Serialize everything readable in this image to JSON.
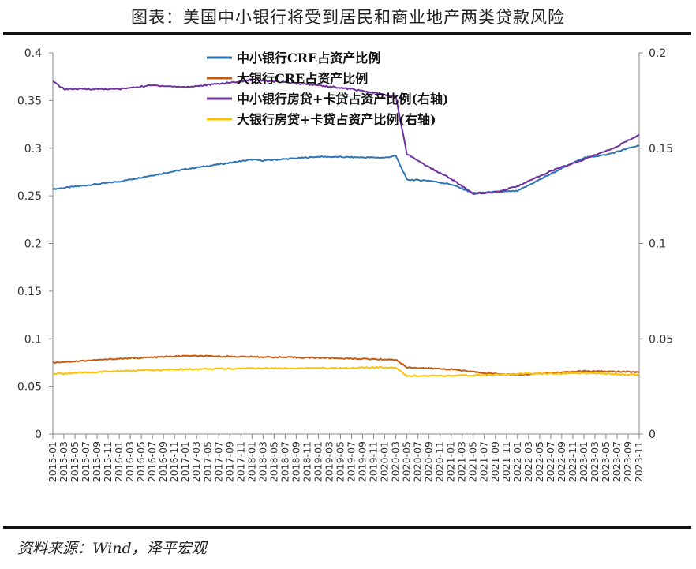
{
  "title": "图表：美国中小银行将受到居民和商业地产两类贷款风险",
  "source": "资料来源：Wind，泽平宏观",
  "chart_data": {
    "type": "line",
    "title": "图表：美国中小银行将受到居民和商业地产两类贷款风险",
    "x_ticks": [
      "2015-01",
      "2015-03",
      "2015-05",
      "2015-07",
      "2015-09",
      "2015-11",
      "2016-01",
      "2016-03",
      "2016-05",
      "2016-07",
      "2016-09",
      "2016-11",
      "2017-01",
      "2017-03",
      "2017-05",
      "2017-07",
      "2017-09",
      "2017-11",
      "2018-01",
      "2018-03",
      "2018-05",
      "2018-07",
      "2018-09",
      "2018-11",
      "2019-01",
      "2019-03",
      "2019-05",
      "2019-07",
      "2019-09",
      "2019-11",
      "2020-01",
      "2020-03",
      "2020-05",
      "2020-07",
      "2020-09",
      "2020-11",
      "2021-01",
      "2021-03",
      "2021-05",
      "2021-07",
      "2021-09",
      "2021-11",
      "2022-01",
      "2022-03",
      "2022-05",
      "2022-07",
      "2022-09",
      "2022-11",
      "2023-01",
      "2023-03",
      "2023-05",
      "2023-07",
      "2023-09",
      "2023-11"
    ],
    "y_left": {
      "range": [
        0,
        0.4
      ],
      "ticks": [
        "0",
        "0.05",
        "0.1",
        "0.15",
        "0.2",
        "0.25",
        "0.3",
        "0.35",
        "0.4"
      ]
    },
    "y_right": {
      "range": [
        0,
        0.2
      ],
      "ticks": [
        "0",
        "0.05",
        "0.1",
        "0.15",
        "0.2"
      ]
    },
    "grid": false,
    "legend_position": "top-center",
    "series": [
      {
        "name": "中小银行CRE占资产比例",
        "axis": "left",
        "color": "#2e75b6",
        "points": [
          [
            "2015-01",
            0.257
          ],
          [
            "2016-01",
            0.265
          ],
          [
            "2017-01",
            0.278
          ],
          [
            "2018-01",
            0.288
          ],
          [
            "2018-03",
            0.287
          ],
          [
            "2019-01",
            0.291
          ],
          [
            "2020-01",
            0.29
          ],
          [
            "2020-03",
            0.292
          ],
          [
            "2020-05",
            0.267
          ],
          [
            "2020-09",
            0.266
          ],
          [
            "2021-01",
            0.262
          ],
          [
            "2021-05",
            0.253
          ],
          [
            "2022-01",
            0.255
          ],
          [
            "2022-07",
            0.273
          ],
          [
            "2023-01",
            0.29
          ],
          [
            "2023-05",
            0.293
          ],
          [
            "2023-11",
            0.303
          ]
        ]
      },
      {
        "name": "大银行CRE占资产比例",
        "axis": "left",
        "color": "#c55a11",
        "points": [
          [
            "2015-01",
            0.075
          ],
          [
            "2016-01",
            0.079
          ],
          [
            "2017-01",
            0.082
          ],
          [
            "2018-01",
            0.081
          ],
          [
            "2019-01",
            0.08
          ],
          [
            "2020-03",
            0.078
          ],
          [
            "2020-05",
            0.07
          ],
          [
            "2021-01",
            0.068
          ],
          [
            "2021-07",
            0.064
          ],
          [
            "2022-01",
            0.062
          ],
          [
            "2023-01",
            0.066
          ],
          [
            "2023-11",
            0.065
          ]
        ]
      },
      {
        "name": "中小银行房贷+卡贷占资产比例(右轴)",
        "axis": "right",
        "color": "#7030a0",
        "points": [
          [
            "2015-01",
            0.185
          ],
          [
            "2015-03",
            0.181
          ],
          [
            "2016-01",
            0.181
          ],
          [
            "2016-07",
            0.183
          ],
          [
            "2017-01",
            0.182
          ],
          [
            "2017-11",
            0.185
          ],
          [
            "2018-01",
            0.186
          ],
          [
            "2019-01",
            0.183
          ],
          [
            "2019-07",
            0.181
          ],
          [
            "2020-01",
            0.178
          ],
          [
            "2020-03",
            0.177
          ],
          [
            "2020-05",
            0.147
          ],
          [
            "2020-09",
            0.14
          ],
          [
            "2021-01",
            0.134
          ],
          [
            "2021-05",
            0.126
          ],
          [
            "2021-09",
            0.127
          ],
          [
            "2022-01",
            0.13
          ],
          [
            "2022-07",
            0.138
          ],
          [
            "2023-01",
            0.144
          ],
          [
            "2023-07",
            0.151
          ],
          [
            "2023-11",
            0.157
          ]
        ]
      },
      {
        "name": "大银行房贷+卡贷占资产比例(右轴)",
        "axis": "right",
        "color": "#ffc000",
        "points": [
          [
            "2015-01",
            0.0315
          ],
          [
            "2016-01",
            0.033
          ],
          [
            "2017-01",
            0.034
          ],
          [
            "2018-01",
            0.0345
          ],
          [
            "2019-01",
            0.0345
          ],
          [
            "2020-03",
            0.035
          ],
          [
            "2020-05",
            0.0305
          ],
          [
            "2021-01",
            0.0305
          ],
          [
            "2022-01",
            0.0315
          ],
          [
            "2023-01",
            0.032
          ],
          [
            "2023-11",
            0.031
          ]
        ]
      }
    ]
  }
}
